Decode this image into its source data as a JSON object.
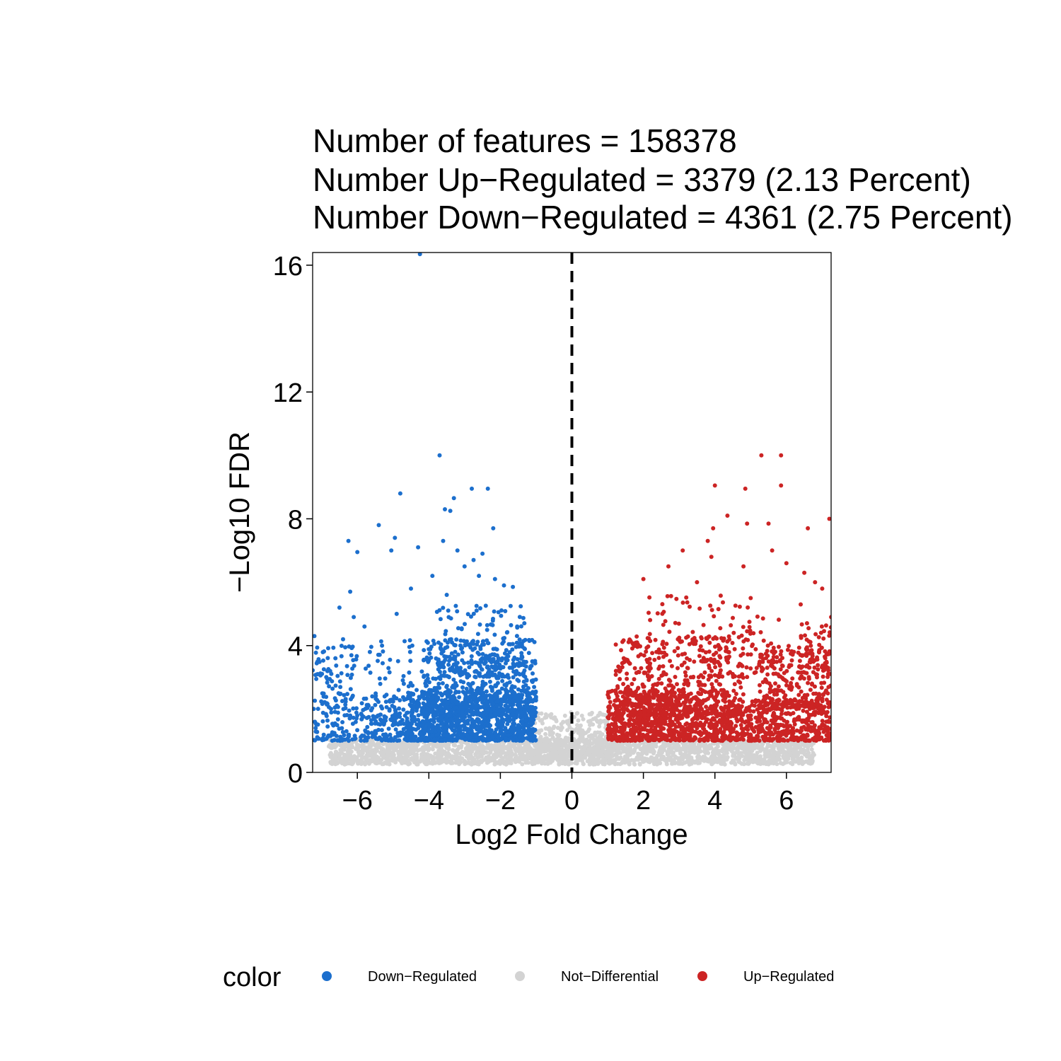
{
  "chart_data": {
    "type": "scatter",
    "title_lines": [
      "Number of features = 158378",
      "Number Up−Regulated = 3379 (2.13 Percent)",
      "Number Down−Regulated = 4361 (2.75 Percent)"
    ],
    "xlabel": "Log2 Fold Change",
    "ylabel": "−Log10 FDR",
    "xlim": [
      -7.25,
      7.25
    ],
    "ylim": [
      0,
      16.4
    ],
    "x_ticks": [
      -6,
      -4,
      -2,
      0,
      2,
      4,
      6
    ],
    "x_tick_labels": [
      "−6",
      "−4",
      "−2",
      "0",
      "2",
      "4",
      "6"
    ],
    "y_ticks": [
      0,
      4,
      8,
      12,
      16
    ],
    "y_tick_labels": [
      "0",
      "4",
      "8",
      "12",
      "16"
    ],
    "reference_line_x": 0,
    "grid": false,
    "legend": {
      "title": "color",
      "position": "bottom",
      "entries": [
        "Down−Regulated",
        "Not−Differential",
        "Up−Regulated"
      ]
    },
    "colors": {
      "Down-Regulated": "#1c6fcd",
      "Not-Differential": "#d3d3d3",
      "Up-Regulated": "#cc2424"
    },
    "series": [
      {
        "name": "Down−Regulated",
        "points": [
          [
            -4.25,
            16.35
          ],
          [
            -3.7,
            10.0
          ],
          [
            -4.8,
            8.8
          ],
          [
            -2.8,
            8.95
          ],
          [
            -2.35,
            8.95
          ],
          [
            -3.3,
            8.65
          ],
          [
            -3.55,
            8.3
          ],
          [
            -3.4,
            8.25
          ],
          [
            -5.4,
            7.8
          ],
          [
            -4.95,
            7.4
          ],
          [
            -2.2,
            7.7
          ],
          [
            -6.25,
            7.3
          ],
          [
            -6.0,
            6.95
          ],
          [
            -5.05,
            7.0
          ],
          [
            -4.3,
            7.1
          ],
          [
            -3.6,
            7.3
          ],
          [
            -3.2,
            7.0
          ],
          [
            -2.75,
            6.7
          ],
          [
            -2.5,
            6.9
          ],
          [
            -3.0,
            6.5
          ],
          [
            -2.6,
            6.2
          ],
          [
            -3.9,
            6.2
          ],
          [
            -4.5,
            5.8
          ],
          [
            -1.9,
            5.9
          ],
          [
            -2.15,
            6.1
          ],
          [
            -6.2,
            5.7
          ],
          [
            -1.65,
            5.85
          ],
          [
            -3.5,
            5.6
          ],
          [
            -4.9,
            5.0
          ],
          [
            -6.5,
            5.2
          ],
          [
            -6.1,
            4.9
          ],
          [
            -5.8,
            4.6
          ],
          [
            -7.2,
            4.3
          ],
          [
            -6.4,
            4.2
          ]
        ],
        "clusters": [
          {
            "x": [
              -7.25,
              -6.0
            ],
            "y": [
              1.0,
              4.0
            ],
            "count": 170
          },
          {
            "x": [
              -6.0,
              -4.6
            ],
            "y": [
              1.0,
              2.4
            ],
            "count": 140
          },
          {
            "x": [
              -5.8,
              -4.4
            ],
            "y": [
              1.5,
              4.2
            ],
            "count": 70
          },
          {
            "x": [
              -4.6,
              -1.0
            ],
            "y": [
              1.0,
              2.6
            ],
            "count": 1100
          },
          {
            "x": [
              -4.2,
              -1.0
            ],
            "y": [
              1.8,
              4.2
            ],
            "count": 520
          },
          {
            "x": [
              -3.8,
              -1.3
            ],
            "y": [
              3.0,
              5.3
            ],
            "count": 170
          }
        ]
      },
      {
        "name": "Not−Differential",
        "clusters": [
          {
            "x": [
              -6.8,
              6.8
            ],
            "y": [
              0.25,
              1.05
            ],
            "count": 2400
          },
          {
            "x": [
              -1.05,
              1.05
            ],
            "y": [
              0.35,
              1.9
            ],
            "count": 260
          }
        ]
      },
      {
        "name": "Up−Regulated",
        "points": [
          [
            5.3,
            10.0
          ],
          [
            5.85,
            10.0
          ],
          [
            4.0,
            9.05
          ],
          [
            4.85,
            8.95
          ],
          [
            5.85,
            9.05
          ],
          [
            4.35,
            8.1
          ],
          [
            3.95,
            7.7
          ],
          [
            4.9,
            7.85
          ],
          [
            5.5,
            7.85
          ],
          [
            6.6,
            7.7
          ],
          [
            7.2,
            8.0
          ],
          [
            3.1,
            7.0
          ],
          [
            3.8,
            7.3
          ],
          [
            5.6,
            7.0
          ],
          [
            2.7,
            6.5
          ],
          [
            3.9,
            6.8
          ],
          [
            4.8,
            6.5
          ],
          [
            6.0,
            6.6
          ],
          [
            6.5,
            6.3
          ],
          [
            2.0,
            6.1
          ],
          [
            3.5,
            6.0
          ],
          [
            6.8,
            6.0
          ],
          [
            5.0,
            5.5
          ],
          [
            6.4,
            5.3
          ],
          [
            7.0,
            5.8
          ],
          [
            7.25,
            4.9
          ]
        ],
        "clusters": [
          {
            "x": [
              1.0,
              4.5
            ],
            "y": [
              1.0,
              2.6
            ],
            "count": 880
          },
          {
            "x": [
              1.2,
              4.8
            ],
            "y": [
              1.8,
              4.3
            ],
            "count": 420
          },
          {
            "x": [
              2.0,
              5.8
            ],
            "y": [
              3.0,
              5.6
            ],
            "count": 150
          },
          {
            "x": [
              4.5,
              7.25
            ],
            "y": [
              1.0,
              2.3
            ],
            "count": 420
          },
          {
            "x": [
              5.2,
              7.25
            ],
            "y": [
              2.0,
              4.0
            ],
            "count": 240
          },
          {
            "x": [
              6.4,
              7.25
            ],
            "y": [
              3.0,
              4.8
            ],
            "count": 60
          }
        ]
      }
    ]
  }
}
